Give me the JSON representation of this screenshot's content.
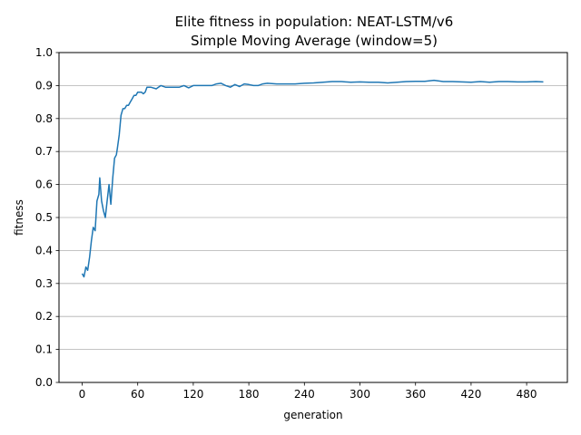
{
  "chart_data": {
    "type": "line",
    "title": "Elite fitness in population: NEAT-LSTM/v6",
    "subtitle": "Simple Moving Average (window=5)",
    "xlabel": "generation",
    "ylabel": "fitness",
    "xlim": [
      -25,
      524
    ],
    "ylim": [
      0.0,
      1.0
    ],
    "xticks": [
      "0",
      "60",
      "120",
      "180",
      "240",
      "300",
      "360",
      "420",
      "480"
    ],
    "yticks": [
      "0.0",
      "0.1",
      "0.2",
      "0.3",
      "0.4",
      "0.5",
      "0.6",
      "0.7",
      "0.8",
      "0.9",
      "1.0"
    ],
    "grid": "horizontal",
    "line_color": "#1f77b4",
    "series": [
      {
        "x": [
          0,
          2,
          4,
          6,
          8,
          10,
          12,
          14,
          16,
          18,
          19,
          21,
          23,
          25,
          27,
          29,
          31,
          33,
          35,
          37,
          38,
          40,
          42,
          44,
          46,
          48,
          50,
          52,
          54,
          56,
          58,
          60,
          62,
          64,
          66,
          68,
          70,
          74,
          80,
          85,
          90,
          95,
          100,
          105,
          110,
          115,
          120,
          125,
          130,
          135,
          140,
          145,
          150,
          155,
          160,
          165,
          170,
          175,
          180,
          185,
          190,
          195,
          200,
          210,
          220,
          230,
          240,
          250,
          260,
          270,
          280,
          290,
          300,
          310,
          320,
          330,
          340,
          350,
          360,
          370,
          380,
          390,
          400,
          410,
          420,
          430,
          440,
          450,
          460,
          470,
          480,
          490,
          498
        ],
        "y": [
          0.33,
          0.32,
          0.35,
          0.34,
          0.38,
          0.43,
          0.47,
          0.46,
          0.55,
          0.57,
          0.62,
          0.55,
          0.52,
          0.5,
          0.55,
          0.6,
          0.54,
          0.62,
          0.68,
          0.69,
          0.71,
          0.75,
          0.81,
          0.83,
          0.83,
          0.84,
          0.84,
          0.85,
          0.86,
          0.87,
          0.87,
          0.88,
          0.88,
          0.88,
          0.875,
          0.88,
          0.895,
          0.895,
          0.89,
          0.9,
          0.895,
          0.895,
          0.895,
          0.895,
          0.9,
          0.893,
          0.9,
          0.9,
          0.9,
          0.9,
          0.9,
          0.905,
          0.907,
          0.9,
          0.895,
          0.903,
          0.897,
          0.905,
          0.903,
          0.9,
          0.9,
          0.905,
          0.907,
          0.905,
          0.905,
          0.905,
          0.907,
          0.908,
          0.91,
          0.912,
          0.912,
          0.91,
          0.911,
          0.91,
          0.91,
          0.908,
          0.91,
          0.912,
          0.913,
          0.913,
          0.916,
          0.912,
          0.912,
          0.911,
          0.91,
          0.912,
          0.91,
          0.912,
          0.912,
          0.911,
          0.911,
          0.912,
          0.911
        ]
      }
    ]
  }
}
